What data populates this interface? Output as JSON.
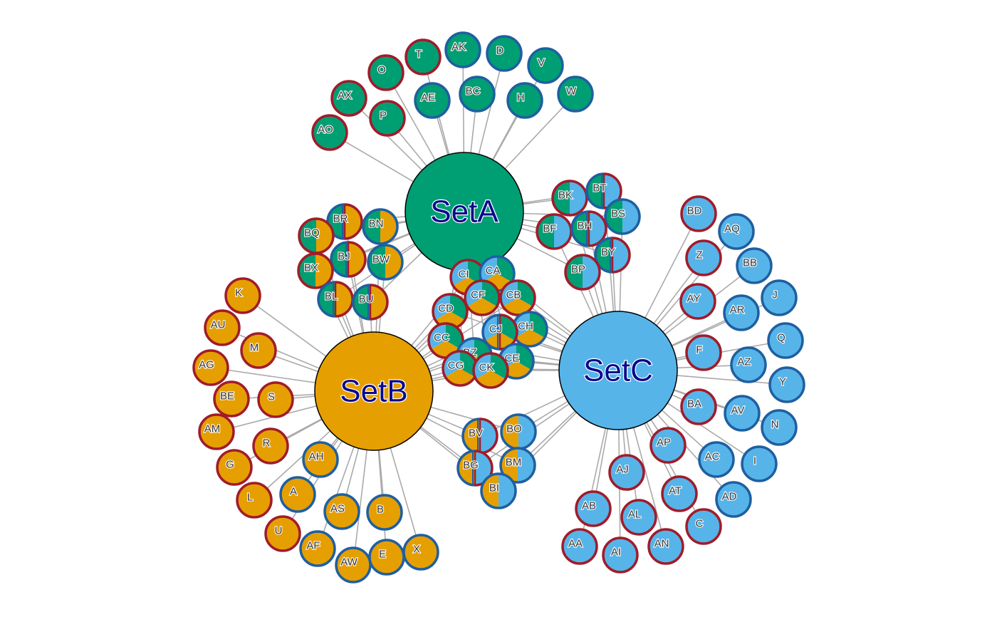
{
  "colors": {
    "A": "#009E73",
    "B": "#E69F00",
    "C": "#56B4E9",
    "blue_border": "#1F5FA0",
    "red_border": "#A01C2A",
    "edge": "#aaaaaa"
  },
  "hubs": [
    {
      "id": "A",
      "label": "SetA"
    },
    {
      "id": "B",
      "label": "SetB"
    },
    {
      "id": "C",
      "label": "SetC"
    }
  ],
  "nodes": [
    {
      "label": "T",
      "sets": [
        "A"
      ],
      "border": "red"
    },
    {
      "label": "AK",
      "sets": [
        "A"
      ],
      "border": "blue"
    },
    {
      "label": "D",
      "sets": [
        "A"
      ],
      "border": "blue"
    },
    {
      "label": "V",
      "sets": [
        "A"
      ],
      "border": "blue"
    },
    {
      "label": "O",
      "sets": [
        "A"
      ],
      "border": "red"
    },
    {
      "label": "BC",
      "sets": [
        "A"
      ],
      "border": "blue"
    },
    {
      "label": "AX",
      "sets": [
        "A"
      ],
      "border": "red"
    },
    {
      "label": "AE",
      "sets": [
        "A"
      ],
      "border": "blue"
    },
    {
      "label": "H",
      "sets": [
        "A"
      ],
      "border": "blue"
    },
    {
      "label": "W",
      "sets": [
        "A"
      ],
      "border": "blue"
    },
    {
      "label": "P",
      "sets": [
        "A"
      ],
      "border": "red"
    },
    {
      "label": "AO",
      "sets": [
        "A"
      ],
      "border": "red"
    },
    {
      "label": "K",
      "sets": [
        "B"
      ],
      "border": "red"
    },
    {
      "label": "AU",
      "sets": [
        "B"
      ],
      "border": "red"
    },
    {
      "label": "M",
      "sets": [
        "B"
      ],
      "border": "red"
    },
    {
      "label": "AG",
      "sets": [
        "B"
      ],
      "border": "red"
    },
    {
      "label": "BE",
      "sets": [
        "B"
      ],
      "border": "red"
    },
    {
      "label": "S",
      "sets": [
        "B"
      ],
      "border": "red"
    },
    {
      "label": "AM",
      "sets": [
        "B"
      ],
      "border": "red"
    },
    {
      "label": "R",
      "sets": [
        "B"
      ],
      "border": "red"
    },
    {
      "label": "G",
      "sets": [
        "B"
      ],
      "border": "red"
    },
    {
      "label": "AH",
      "sets": [
        "B"
      ],
      "border": "blue"
    },
    {
      "label": "L",
      "sets": [
        "B"
      ],
      "border": "red"
    },
    {
      "label": "A",
      "sets": [
        "B"
      ],
      "border": "blue"
    },
    {
      "label": "AS",
      "sets": [
        "B"
      ],
      "border": "blue"
    },
    {
      "label": "B",
      "sets": [
        "B"
      ],
      "border": "blue"
    },
    {
      "label": "U",
      "sets": [
        "B"
      ],
      "border": "red"
    },
    {
      "label": "AF",
      "sets": [
        "B"
      ],
      "border": "blue"
    },
    {
      "label": "AW",
      "sets": [
        "B"
      ],
      "border": "blue"
    },
    {
      "label": "E",
      "sets": [
        "B"
      ],
      "border": "blue"
    },
    {
      "label": "X",
      "sets": [
        "B"
      ],
      "border": "blue"
    },
    {
      "label": "BD",
      "sets": [
        "C"
      ],
      "border": "red"
    },
    {
      "label": "AQ",
      "sets": [
        "C"
      ],
      "border": "blue"
    },
    {
      "label": "Z",
      "sets": [
        "C"
      ],
      "border": "red"
    },
    {
      "label": "BB",
      "sets": [
        "C"
      ],
      "border": "blue"
    },
    {
      "label": "AY",
      "sets": [
        "C"
      ],
      "border": "red"
    },
    {
      "label": "J",
      "sets": [
        "C"
      ],
      "border": "blue"
    },
    {
      "label": "AR",
      "sets": [
        "C"
      ],
      "border": "blue"
    },
    {
      "label": "Q",
      "sets": [
        "C"
      ],
      "border": "blue"
    },
    {
      "label": "F",
      "sets": [
        "C"
      ],
      "border": "red"
    },
    {
      "label": "AZ",
      "sets": [
        "C"
      ],
      "border": "blue"
    },
    {
      "label": "Y",
      "sets": [
        "C"
      ],
      "border": "blue"
    },
    {
      "label": "BA",
      "sets": [
        "C"
      ],
      "border": "red"
    },
    {
      "label": "AV",
      "sets": [
        "C"
      ],
      "border": "blue"
    },
    {
      "label": "N",
      "sets": [
        "C"
      ],
      "border": "blue"
    },
    {
      "label": "AP",
      "sets": [
        "C"
      ],
      "border": "red"
    },
    {
      "label": "AC",
      "sets": [
        "C"
      ],
      "border": "blue"
    },
    {
      "label": "I",
      "sets": [
        "C"
      ],
      "border": "blue"
    },
    {
      "label": "AJ",
      "sets": [
        "C"
      ],
      "border": "red"
    },
    {
      "label": "AT",
      "sets": [
        "C"
      ],
      "border": "red"
    },
    {
      "label": "AD",
      "sets": [
        "C"
      ],
      "border": "blue"
    },
    {
      "label": "AB",
      "sets": [
        "C"
      ],
      "border": "red"
    },
    {
      "label": "AL",
      "sets": [
        "C"
      ],
      "border": "red"
    },
    {
      "label": "C",
      "sets": [
        "C"
      ],
      "border": "red"
    },
    {
      "label": "AA",
      "sets": [
        "C"
      ],
      "border": "red"
    },
    {
      "label": "AI",
      "sets": [
        "C"
      ],
      "border": "red"
    },
    {
      "label": "AN",
      "sets": [
        "C"
      ],
      "border": "red"
    },
    {
      "label": "BR",
      "sets": [
        "A",
        "B"
      ],
      "border": "mixed"
    },
    {
      "label": "BN",
      "sets": [
        "A",
        "B"
      ],
      "border": "blue"
    },
    {
      "label": "BQ",
      "sets": [
        "A",
        "B"
      ],
      "border": "red"
    },
    {
      "label": "BJ",
      "sets": [
        "A",
        "B"
      ],
      "border": "mixed"
    },
    {
      "label": "BW",
      "sets": [
        "A",
        "B"
      ],
      "border": "blue"
    },
    {
      "label": "BX",
      "sets": [
        "A",
        "B"
      ],
      "border": "red"
    },
    {
      "label": "BL",
      "sets": [
        "A",
        "B"
      ],
      "border": "mixed"
    },
    {
      "label": "BU",
      "sets": [
        "A",
        "B"
      ],
      "border": "mixed"
    },
    {
      "label": "BK",
      "sets": [
        "A",
        "C"
      ],
      "border": "red"
    },
    {
      "label": "BT",
      "sets": [
        "A",
        "C"
      ],
      "border": "mixed"
    },
    {
      "label": "BS",
      "sets": [
        "A",
        "C"
      ],
      "border": "blue"
    },
    {
      "label": "BF",
      "sets": [
        "A",
        "C"
      ],
      "border": "red"
    },
    {
      "label": "BH",
      "sets": [
        "A",
        "C"
      ],
      "border": "mixed"
    },
    {
      "label": "BY",
      "sets": [
        "A",
        "C"
      ],
      "border": "mixed"
    },
    {
      "label": "BP",
      "sets": [
        "A",
        "C"
      ],
      "border": "red"
    },
    {
      "label": "BV",
      "sets": [
        "B",
        "C"
      ],
      "border": "mixed"
    },
    {
      "label": "BO",
      "sets": [
        "B",
        "C"
      ],
      "border": "blue"
    },
    {
      "label": "BG",
      "sets": [
        "B",
        "C"
      ],
      "border": "mixed"
    },
    {
      "label": "BM",
      "sets": [
        "B",
        "C"
      ],
      "border": "blue"
    },
    {
      "label": "BI",
      "sets": [
        "B",
        "C"
      ],
      "border": "blue"
    },
    {
      "label": "CI",
      "sets": [
        "A",
        "B",
        "C"
      ],
      "border": "red"
    },
    {
      "label": "CA",
      "sets": [
        "A",
        "B",
        "C"
      ],
      "border": "blue"
    },
    {
      "label": "CF",
      "sets": [
        "A",
        "B",
        "C"
      ],
      "border": "red"
    },
    {
      "label": "CB",
      "sets": [
        "A",
        "B",
        "C"
      ],
      "border": "red"
    },
    {
      "label": "CD",
      "sets": [
        "A",
        "B",
        "C"
      ],
      "border": "red"
    },
    {
      "label": "CH",
      "sets": [
        "A",
        "B",
        "C"
      ],
      "border": "blue"
    },
    {
      "label": "CC",
      "sets": [
        "A",
        "B",
        "C"
      ],
      "border": "red"
    },
    {
      "label": "CJ",
      "sets": [
        "A",
        "B",
        "C"
      ],
      "border": "mixed"
    },
    {
      "label": "BZ",
      "sets": [
        "A",
        "B",
        "C"
      ],
      "border": "blue"
    },
    {
      "label": "CE",
      "sets": [
        "A",
        "B",
        "C"
      ],
      "border": "blue"
    },
    {
      "label": "CG",
      "sets": [
        "A",
        "B",
        "C"
      ],
      "border": "red"
    },
    {
      "label": "CK",
      "sets": [
        "A",
        "B",
        "C"
      ],
      "border": "red"
    }
  ]
}
